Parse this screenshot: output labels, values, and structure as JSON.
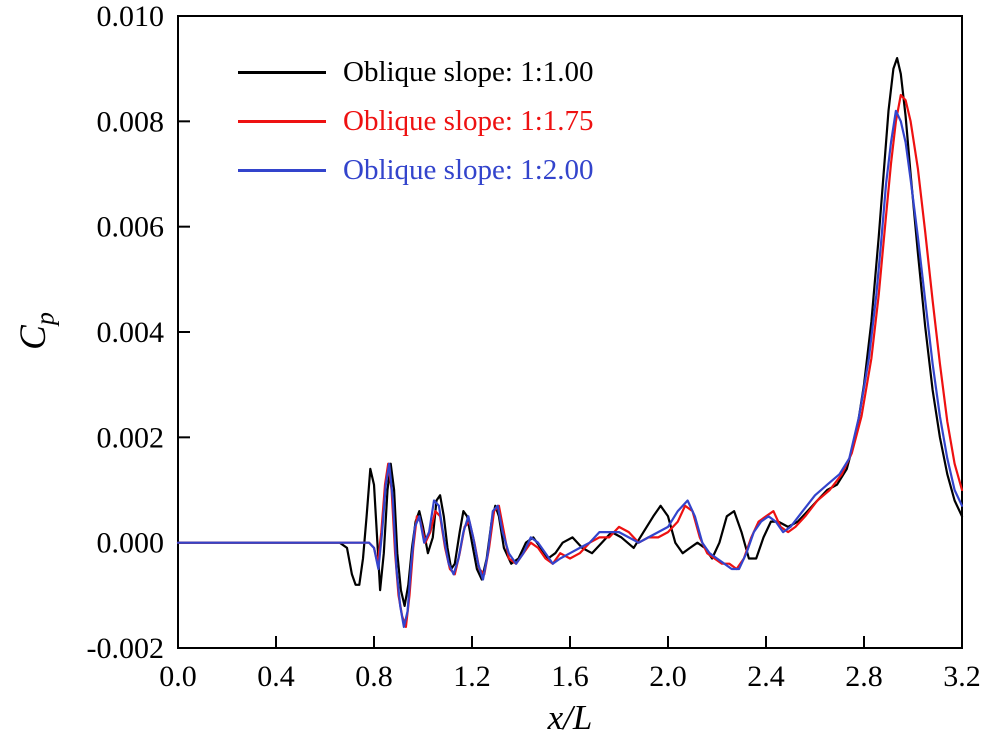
{
  "figure": {
    "background": "#ffffff",
    "frame_color": "#000000"
  },
  "chart_data": {
    "type": "line",
    "title": "",
    "xlabel": "x/L",
    "ylabel_main": "C",
    "ylabel_sub": "p",
    "xlim": [
      0.0,
      3.2
    ],
    "ylim": [
      -0.002,
      0.01
    ],
    "grid": false,
    "legend_position": "top-left",
    "x_ticks": [
      "0.0",
      "0.4",
      "0.8",
      "1.2",
      "1.6",
      "2.0",
      "2.4",
      "2.8",
      "3.2"
    ],
    "y_ticks": [
      "0.010",
      "0.008",
      "0.006",
      "0.004",
      "0.002",
      "0.000",
      "-0.002"
    ],
    "series": [
      {
        "name": "Oblique slope: 1:1.00",
        "color": "#000000",
        "points": [
          [
            0.0,
            0.0
          ],
          [
            0.3,
            0.0
          ],
          [
            0.5,
            0.0
          ],
          [
            0.66,
            0.0
          ],
          [
            0.69,
            -0.0001
          ],
          [
            0.71,
            -0.0006
          ],
          [
            0.725,
            -0.0008
          ],
          [
            0.74,
            -0.0008
          ],
          [
            0.755,
            -0.0003
          ],
          [
            0.77,
            0.0005
          ],
          [
            0.785,
            0.0014
          ],
          [
            0.8,
            0.0011
          ],
          [
            0.815,
            -0.0001
          ],
          [
            0.825,
            -0.0009
          ],
          [
            0.84,
            -0.0002
          ],
          [
            0.855,
            0.001
          ],
          [
            0.868,
            0.0015
          ],
          [
            0.882,
            0.001
          ],
          [
            0.895,
            -0.0002
          ],
          [
            0.91,
            -0.0009
          ],
          [
            0.925,
            -0.0012
          ],
          [
            0.94,
            -0.0008
          ],
          [
            0.955,
            -0.0001
          ],
          [
            0.97,
            0.0004
          ],
          [
            0.985,
            0.0006
          ],
          [
            1.0,
            0.0003
          ],
          [
            1.02,
            -0.0002
          ],
          [
            1.04,
            0.0001
          ],
          [
            1.055,
            0.0008
          ],
          [
            1.07,
            0.0009
          ],
          [
            1.085,
            0.0005
          ],
          [
            1.1,
            -0.0001
          ],
          [
            1.115,
            -0.0005
          ],
          [
            1.13,
            -0.0004
          ],
          [
            1.15,
            0.0002
          ],
          [
            1.165,
            0.0006
          ],
          [
            1.18,
            0.0005
          ],
          [
            1.2,
            0.0
          ],
          [
            1.22,
            -0.0005
          ],
          [
            1.24,
            -0.0007
          ],
          [
            1.26,
            -0.0003
          ],
          [
            1.28,
            0.0004
          ],
          [
            1.295,
            0.0007
          ],
          [
            1.31,
            0.0005
          ],
          [
            1.33,
            -0.0001
          ],
          [
            1.36,
            -0.0004
          ],
          [
            1.39,
            -0.0003
          ],
          [
            1.42,
            0.0
          ],
          [
            1.45,
            0.0001
          ],
          [
            1.48,
            -0.0001
          ],
          [
            1.51,
            -0.0003
          ],
          [
            1.54,
            -0.0002
          ],
          [
            1.57,
            0.0
          ],
          [
            1.61,
            0.0001
          ],
          [
            1.65,
            -0.0001
          ],
          [
            1.69,
            -0.0002
          ],
          [
            1.73,
            0.0
          ],
          [
            1.77,
            0.0002
          ],
          [
            1.81,
            0.0001
          ],
          [
            1.86,
            -0.0001
          ],
          [
            1.9,
            0.0002
          ],
          [
            1.94,
            0.0005
          ],
          [
            1.97,
            0.0007
          ],
          [
            2.0,
            0.0005
          ],
          [
            2.03,
            0.0
          ],
          [
            2.06,
            -0.0002
          ],
          [
            2.09,
            -0.0001
          ],
          [
            2.12,
            0.0
          ],
          [
            2.15,
            -0.0001
          ],
          [
            2.18,
            -0.0003
          ],
          [
            2.21,
            0.0
          ],
          [
            2.24,
            0.0005
          ],
          [
            2.27,
            0.0006
          ],
          [
            2.3,
            0.0002
          ],
          [
            2.33,
            -0.0003
          ],
          [
            2.36,
            -0.0003
          ],
          [
            2.39,
            0.0001
          ],
          [
            2.42,
            0.0004
          ],
          [
            2.45,
            0.0004
          ],
          [
            2.49,
            0.0003
          ],
          [
            2.53,
            0.0004
          ],
          [
            2.57,
            0.0006
          ],
          [
            2.61,
            0.0008
          ],
          [
            2.65,
            0.001
          ],
          [
            2.69,
            0.0011
          ],
          [
            2.73,
            0.0014
          ],
          [
            2.77,
            0.0021
          ],
          [
            2.8,
            0.003
          ],
          [
            2.83,
            0.0042
          ],
          [
            2.86,
            0.0058
          ],
          [
            2.88,
            0.007
          ],
          [
            2.9,
            0.0082
          ],
          [
            2.92,
            0.009
          ],
          [
            2.935,
            0.0092
          ],
          [
            2.95,
            0.0089
          ],
          [
            2.97,
            0.0081
          ],
          [
            2.99,
            0.007
          ],
          [
            3.02,
            0.0055
          ],
          [
            3.05,
            0.0041
          ],
          [
            3.08,
            0.0029
          ],
          [
            3.11,
            0.002
          ],
          [
            3.14,
            0.0013
          ],
          [
            3.17,
            0.0008
          ],
          [
            3.2,
            0.0005
          ]
        ]
      },
      {
        "name": "Oblique slope: 1:1.75",
        "color": "#ee1111",
        "points": [
          [
            0.0,
            0.0
          ],
          [
            0.4,
            0.0
          ],
          [
            0.6,
            0.0
          ],
          [
            0.78,
            0.0
          ],
          [
            0.8,
            -0.0001
          ],
          [
            0.815,
            -0.0004
          ],
          [
            0.83,
            0.0002
          ],
          [
            0.845,
            0.0011
          ],
          [
            0.858,
            0.0015
          ],
          [
            0.872,
            0.001
          ],
          [
            0.886,
            -0.0002
          ],
          [
            0.9,
            -0.001
          ],
          [
            0.915,
            -0.0014
          ],
          [
            0.93,
            -0.0016
          ],
          [
            0.945,
            -0.001
          ],
          [
            0.96,
            -0.0001
          ],
          [
            0.975,
            0.0005
          ],
          [
            0.99,
            0.0004
          ],
          [
            1.01,
            0.0
          ],
          [
            1.03,
            0.0002
          ],
          [
            1.05,
            0.0006
          ],
          [
            1.07,
            0.0005
          ],
          [
            1.09,
            -0.0001
          ],
          [
            1.11,
            -0.0005
          ],
          [
            1.13,
            -0.0006
          ],
          [
            1.15,
            -0.0002
          ],
          [
            1.17,
            0.0003
          ],
          [
            1.19,
            0.0004
          ],
          [
            1.21,
            0.0
          ],
          [
            1.23,
            -0.0005
          ],
          [
            1.25,
            -0.0006
          ],
          [
            1.27,
            -0.0001
          ],
          [
            1.29,
            0.0006
          ],
          [
            1.31,
            0.0007
          ],
          [
            1.33,
            0.0002
          ],
          [
            1.35,
            -0.0003
          ],
          [
            1.38,
            -0.0004
          ],
          [
            1.41,
            -0.0002
          ],
          [
            1.44,
            0.0
          ],
          [
            1.47,
            -0.0001
          ],
          [
            1.5,
            -0.0003
          ],
          [
            1.53,
            -0.0004
          ],
          [
            1.56,
            -0.0002
          ],
          [
            1.6,
            -0.0003
          ],
          [
            1.64,
            -0.0002
          ],
          [
            1.68,
            0.0
          ],
          [
            1.72,
            0.0001
          ],
          [
            1.76,
            0.0001
          ],
          [
            1.8,
            0.0003
          ],
          [
            1.84,
            0.0002
          ],
          [
            1.88,
            0.0
          ],
          [
            1.92,
            0.0001
          ],
          [
            1.96,
            0.0001
          ],
          [
            2.0,
            0.0002
          ],
          [
            2.04,
            0.0004
          ],
          [
            2.07,
            0.0007
          ],
          [
            2.1,
            0.0006
          ],
          [
            2.13,
            0.0001
          ],
          [
            2.16,
            -0.0002
          ],
          [
            2.19,
            -0.0003
          ],
          [
            2.22,
            -0.0004
          ],
          [
            2.25,
            -0.0004
          ],
          [
            2.28,
            -0.0005
          ],
          [
            2.31,
            -0.0003
          ],
          [
            2.34,
            0.0001
          ],
          [
            2.37,
            0.0004
          ],
          [
            2.4,
            0.0005
          ],
          [
            2.43,
            0.0006
          ],
          [
            2.46,
            0.0003
          ],
          [
            2.49,
            0.0002
          ],
          [
            2.52,
            0.0003
          ],
          [
            2.56,
            0.0005
          ],
          [
            2.61,
            0.0008
          ],
          [
            2.66,
            0.001
          ],
          [
            2.71,
            0.0013
          ],
          [
            2.75,
            0.0017
          ],
          [
            2.79,
            0.0024
          ],
          [
            2.83,
            0.0035
          ],
          [
            2.86,
            0.0047
          ],
          [
            2.89,
            0.0062
          ],
          [
            2.91,
            0.0072
          ],
          [
            2.93,
            0.008
          ],
          [
            2.95,
            0.0085
          ],
          [
            2.97,
            0.0084
          ],
          [
            2.99,
            0.008
          ],
          [
            3.02,
            0.0071
          ],
          [
            3.05,
            0.0059
          ],
          [
            3.08,
            0.0046
          ],
          [
            3.11,
            0.0034
          ],
          [
            3.14,
            0.0023
          ],
          [
            3.17,
            0.0015
          ],
          [
            3.2,
            0.001
          ]
        ]
      },
      {
        "name": "Oblique slope: 1:2.00",
        "color": "#3344cc",
        "points": [
          [
            0.0,
            0.0
          ],
          [
            0.4,
            0.0
          ],
          [
            0.6,
            0.0
          ],
          [
            0.78,
            0.0
          ],
          [
            0.8,
            -0.0001
          ],
          [
            0.818,
            -0.0005
          ],
          [
            0.833,
            0.0002
          ],
          [
            0.848,
            0.0011
          ],
          [
            0.862,
            0.0015
          ],
          [
            0.877,
            0.0008
          ],
          [
            0.892,
            -0.0005
          ],
          [
            0.907,
            -0.0012
          ],
          [
            0.922,
            -0.0016
          ],
          [
            0.937,
            -0.0013
          ],
          [
            0.952,
            -0.0004
          ],
          [
            0.967,
            0.0003
          ],
          [
            0.985,
            0.0005
          ],
          [
            1.005,
            0.0
          ],
          [
            1.025,
            0.0002
          ],
          [
            1.045,
            0.0008
          ],
          [
            1.065,
            0.0007
          ],
          [
            1.085,
            0.0001
          ],
          [
            1.105,
            -0.0004
          ],
          [
            1.125,
            -0.0006
          ],
          [
            1.145,
            -0.0003
          ],
          [
            1.165,
            0.0002
          ],
          [
            1.185,
            0.0005
          ],
          [
            1.205,
            0.0001
          ],
          [
            1.225,
            -0.0004
          ],
          [
            1.245,
            -0.0007
          ],
          [
            1.265,
            -0.0002
          ],
          [
            1.285,
            0.0006
          ],
          [
            1.305,
            0.0007
          ],
          [
            1.325,
            0.0002
          ],
          [
            1.35,
            -0.0002
          ],
          [
            1.38,
            -0.0004
          ],
          [
            1.41,
            -0.0002
          ],
          [
            1.44,
            0.0001
          ],
          [
            1.47,
            0.0
          ],
          [
            1.5,
            -0.0002
          ],
          [
            1.53,
            -0.0004
          ],
          [
            1.56,
            -0.0003
          ],
          [
            1.6,
            -0.0002
          ],
          [
            1.64,
            -0.0001
          ],
          [
            1.68,
            0.0
          ],
          [
            1.72,
            0.0002
          ],
          [
            1.76,
            0.0002
          ],
          [
            1.8,
            0.0002
          ],
          [
            1.84,
            0.0001
          ],
          [
            1.88,
            0.0
          ],
          [
            1.92,
            0.0001
          ],
          [
            1.96,
            0.0002
          ],
          [
            2.0,
            0.0003
          ],
          [
            2.04,
            0.0006
          ],
          [
            2.08,
            0.0008
          ],
          [
            2.11,
            0.0005
          ],
          [
            2.14,
            0.0
          ],
          [
            2.17,
            -0.0002
          ],
          [
            2.2,
            -0.0003
          ],
          [
            2.23,
            -0.0004
          ],
          [
            2.26,
            -0.0005
          ],
          [
            2.29,
            -0.0005
          ],
          [
            2.32,
            -0.0002
          ],
          [
            2.35,
            0.0002
          ],
          [
            2.38,
            0.0004
          ],
          [
            2.41,
            0.0005
          ],
          [
            2.44,
            0.0004
          ],
          [
            2.47,
            0.0002
          ],
          [
            2.5,
            0.0003
          ],
          [
            2.55,
            0.0006
          ],
          [
            2.6,
            0.0009
          ],
          [
            2.65,
            0.0011
          ],
          [
            2.7,
            0.0013
          ],
          [
            2.74,
            0.0016
          ],
          [
            2.78,
            0.0024
          ],
          [
            2.82,
            0.0035
          ],
          [
            2.85,
            0.0047
          ],
          [
            2.87,
            0.0057
          ],
          [
            2.89,
            0.0068
          ],
          [
            2.91,
            0.0076
          ],
          [
            2.93,
            0.0082
          ],
          [
            2.95,
            0.008
          ],
          [
            2.97,
            0.0076
          ],
          [
            2.99,
            0.0069
          ],
          [
            3.02,
            0.0058
          ],
          [
            3.05,
            0.0046
          ],
          [
            3.08,
            0.0034
          ],
          [
            3.11,
            0.0024
          ],
          [
            3.14,
            0.0016
          ],
          [
            3.17,
            0.001
          ],
          [
            3.2,
            0.0007
          ]
        ]
      }
    ]
  }
}
